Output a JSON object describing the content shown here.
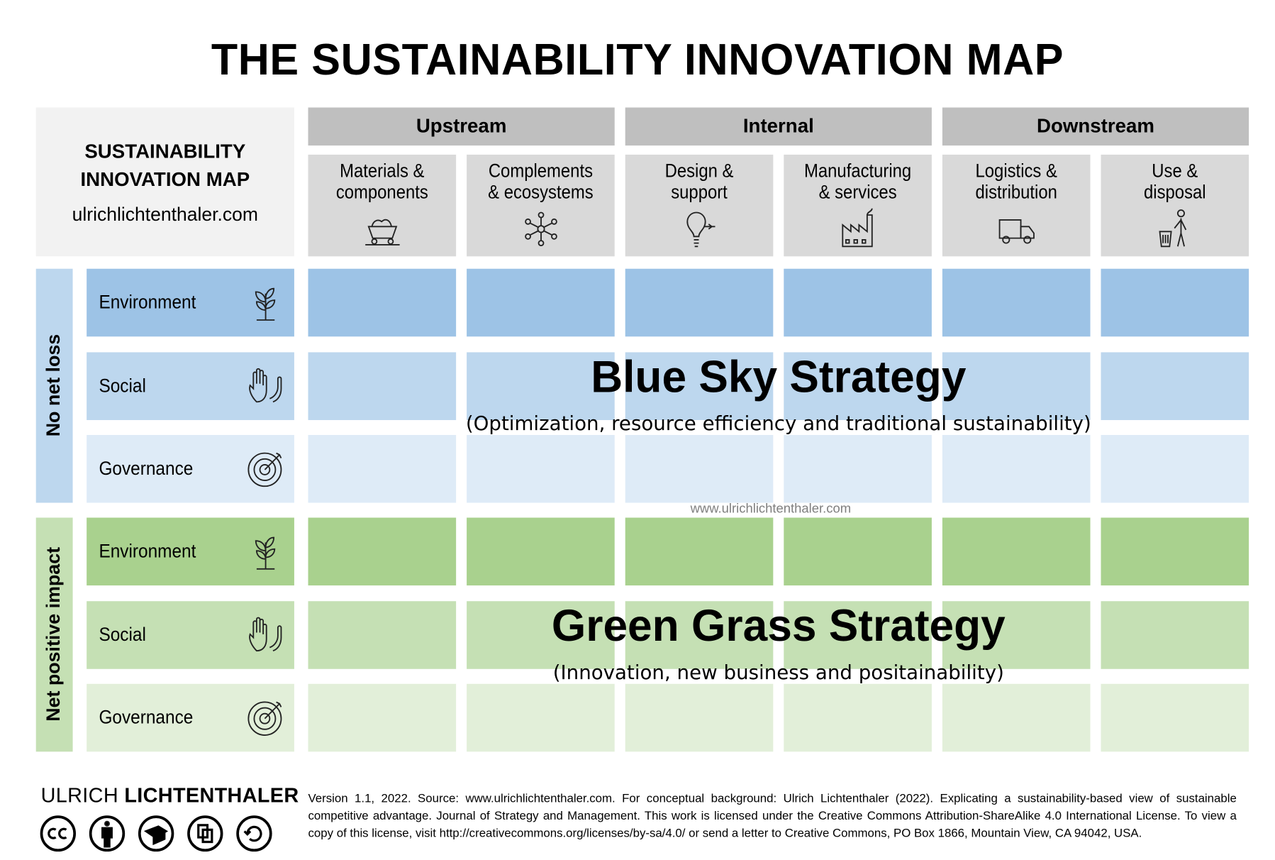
{
  "title": "THE SUSTAINABILITY INNOVATION MAP",
  "corner": {
    "title_lines": [
      "SUSTAINABILITY",
      "INNOVATION MAP"
    ],
    "url": "ulrichlichtenthaler.com"
  },
  "stages": [
    {
      "label": "Upstream",
      "columns": [
        {
          "lines": [
            "Materials &",
            "components"
          ]
        },
        {
          "lines": [
            "Complements",
            "& ecosystems"
          ]
        }
      ]
    },
    {
      "label": "Internal",
      "columns": [
        {
          "lines": [
            "Design &",
            "support"
          ]
        },
        {
          "lines": [
            "Manufacturing",
            "& services"
          ]
        }
      ]
    },
    {
      "label": "Downstream",
      "columns": [
        {
          "lines": [
            "Logistics &",
            "distribution"
          ]
        },
        {
          "lines": [
            "Use &",
            "disposal"
          ]
        }
      ]
    }
  ],
  "groups": [
    {
      "label": "No net loss",
      "rows": [
        "Environment",
        "Social",
        "Governance"
      ],
      "strategy": {
        "title": "Blue Sky Strategy",
        "subtitle": "(Optimization, resource efficiency and traditional sustainability)"
      }
    },
    {
      "label": "Net positive impact",
      "rows": [
        "Environment",
        "Social",
        "Governance"
      ],
      "strategy": {
        "title": "Green Grass Strategy",
        "subtitle": "(Innovation, new business and positainability)"
      }
    }
  ],
  "watermark": "www.ulrichlichtenthaler.com",
  "footer": {
    "brand_light": "ULRICH",
    "brand_bold": "LICHTENTHALER",
    "license_text": "Version 1.1, 2022. Source: www.ulrichlichtenthaler.com. For conceptual background: Ulrich Lichtenthaler (2022). Explicating a sustainability-based view of sustainable competitive advantage. Journal of Strategy and Management. This work is licensed under the Creative Commons Attribution-ShareAlike 4.0 International License. To view a copy of this license, visit http://creativecommons.org/licenses/by-sa/4.0/ or send a letter to Creative Commons, PO Box 1866, Mountain View, CA 94042, USA."
  }
}
